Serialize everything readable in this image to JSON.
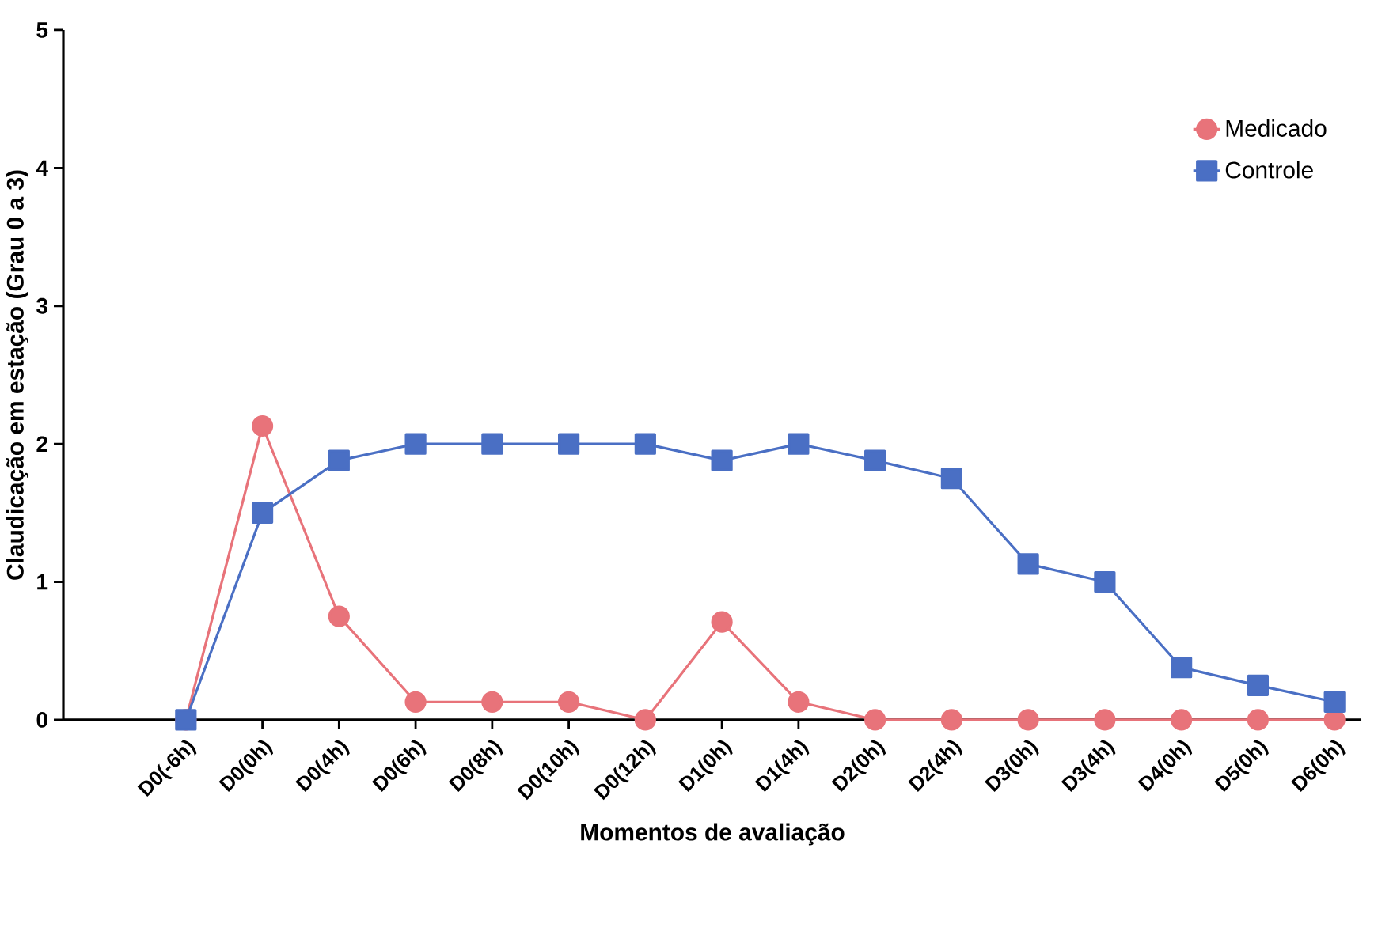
{
  "chart_data": {
    "type": "line",
    "xlabel": "Momentos de avaliação",
    "ylabel": "Claudicação em estação (Grau 0 a 3)",
    "categories": [
      "D0(-6h)",
      "D0(0h)",
      "D0(4h)",
      "D0(6h)",
      "D0(8h)",
      "D0(10h)",
      "D0(12h)",
      "D1(0h)",
      "D1(4h)",
      "D2(0h)",
      "D2(4h)",
      "D3(0h)",
      "D3(4h)",
      "D4(0h)",
      "D5(0h)",
      "D6(0h)"
    ],
    "series": [
      {
        "name": "Medicado",
        "color": "#e8737a",
        "marker": "circle",
        "values": [
          0,
          2.13,
          0.75,
          0.13,
          0.13,
          0.13,
          0,
          0.71,
          0.13,
          0,
          0,
          0,
          0,
          0,
          0,
          0
        ]
      },
      {
        "name": "Controle",
        "color": "#4a6fc4",
        "marker": "square",
        "values": [
          0,
          1.5,
          1.88,
          2,
          2,
          2,
          2,
          1.88,
          2,
          1.88,
          1.75,
          1.13,
          1.0,
          0.38,
          0.25,
          0.13
        ]
      }
    ],
    "ylim": [
      0,
      5
    ],
    "yticks": [
      0,
      1,
      2,
      3,
      4,
      5
    ],
    "grid": false,
    "legend": "top right",
    "line_style": "solid"
  }
}
